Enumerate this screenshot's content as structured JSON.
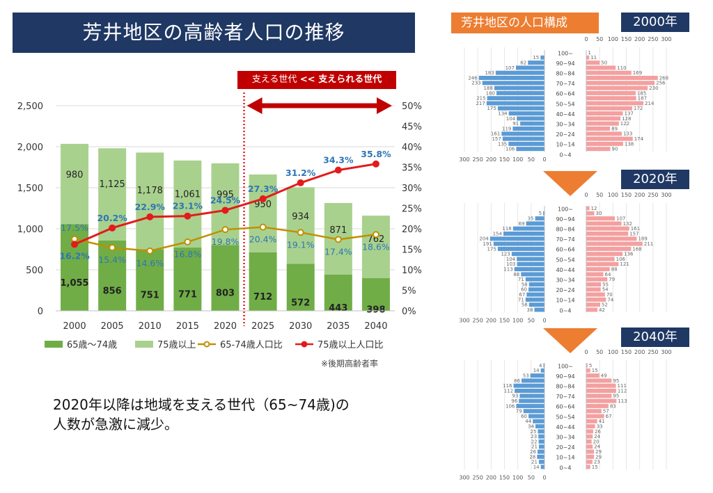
{
  "title": "芳井地区の高齢者人口の推移",
  "population_title": "芳井地区の人口構成",
  "support_label": {
    "left": "支える世代",
    "arrow": "<<",
    "right": "支えられる世代"
  },
  "note": "※後期高齢者率",
  "message_line1": "2020年以降は地域を支える世代（65~74歳)の",
  "message_line2": "人数が急激に減少。",
  "colors": {
    "dark_green": "#70ad47",
    "light_green": "#a9d18e",
    "gold": "#bf9000",
    "red": "#e31b1b",
    "blue": "#5b9bd5",
    "pink": "#f4a0a0",
    "navy": "#1f3864",
    "orange": "#ed7d31",
    "ratio_label_blue": "#2e75b6",
    "ratio_label_dark": "#1f4e79"
  },
  "chart_data": [
    {
      "type": "bar",
      "stacked": true,
      "categories": [
        "2000",
        "2005",
        "2010",
        "2015",
        "2020",
        "2025",
        "2030",
        "2035",
        "2040"
      ],
      "series": [
        {
          "name": "65歳～74歳",
          "values": [
            1055,
            856,
            751,
            771,
            803,
            712,
            572,
            443,
            398
          ]
        },
        {
          "name": "75歳以上",
          "values": [
            980,
            1125,
            1178,
            1061,
            995,
            950,
            934,
            871,
            762
          ]
        }
      ],
      "line_series": [
        {
          "name": "65-74歳人口比",
          "axis": "right",
          "values": [
            17.5,
            15.4,
            14.6,
            16.8,
            19.8,
            20.4,
            19.1,
            17.4,
            18.6
          ],
          "labels": [
            "17.5%",
            "15.4%",
            "14.6%",
            "16.8%",
            "19.8%",
            "20.4%",
            "19.1%",
            "17.4%",
            "18.6%"
          ]
        },
        {
          "name": "75歳以上人口比",
          "axis": "right",
          "values": [
            16.2,
            20.2,
            22.9,
            23.1,
            24.5,
            27.3,
            31.2,
            34.3,
            35.8
          ],
          "labels": [
            "16.2%",
            "20.2%",
            "22.9%",
            "23.1%",
            "24.5%",
            "27.3%",
            "31.2%",
            "34.3%",
            "35.8%"
          ]
        }
      ],
      "ylim": [
        0,
        2500
      ],
      "yticks": [
        "0",
        "500",
        "1,000",
        "1,500",
        "2,000",
        "2,500"
      ],
      "y2lim": [
        0,
        50
      ],
      "y2ticks": [
        "0%",
        "5%",
        "10%",
        "15%",
        "20%",
        "25%",
        "30%",
        "35%",
        "40%",
        "45%",
        "50%"
      ],
      "bar_labels": {
        "dark": [
          "1,055",
          "856",
          "751",
          "771",
          "803",
          "712",
          "572",
          "443",
          "398"
        ],
        "light": [
          "980",
          "1,125",
          "1,178",
          "1,061",
          "995",
          "950",
          "934",
          "871",
          "762"
        ]
      },
      "legend_position": "bottom",
      "projection_start": "2025"
    },
    {
      "type": "bar",
      "orientation": "horizontal-pyramid",
      "year": "2000年",
      "age_groups": [
        "100~",
        "90~94",
        "80~84",
        "70~74",
        "60~64",
        "50~54",
        "40~44",
        "30~34",
        "20~24",
        "10~14",
        "0~4"
      ],
      "male": [
        0,
        15,
        62,
        107,
        183,
        246,
        233,
        188,
        180,
        215,
        217,
        175,
        134,
        104,
        91,
        119,
        161,
        157,
        135,
        106
      ],
      "female": [
        1,
        11,
        50,
        110,
        169,
        268,
        256,
        230,
        185,
        187,
        214,
        172,
        137,
        128,
        122,
        89,
        133,
        174,
        138,
        90
      ],
      "xticks": [
        "300",
        "250",
        "200",
        "150",
        "100",
        "50",
        "0"
      ],
      "xlim": [
        0,
        300
      ]
    },
    {
      "type": "bar",
      "orientation": "horizontal-pyramid",
      "year": "2020年",
      "age_groups": [
        "100~",
        "90~94",
        "80~84",
        "70~74",
        "60~64",
        "50~54",
        "40~44",
        "30~34",
        "20~24",
        "10~14",
        "0~4"
      ],
      "male": [
        0,
        5,
        35,
        69,
        118,
        154,
        204,
        191,
        175,
        123,
        104,
        103,
        113,
        88,
        71,
        58,
        60,
        67,
        71,
        58,
        38
      ],
      "female": [
        12,
        30,
        107,
        132,
        161,
        157,
        189,
        211,
        168,
        136,
        106,
        121,
        88,
        64,
        79,
        55,
        54,
        70,
        74,
        52,
        42
      ],
      "xticks": [
        "300",
        "250",
        "200",
        "150",
        "100",
        "50",
        "0"
      ],
      "xlim": [
        0,
        300
      ]
    },
    {
      "type": "bar",
      "orientation": "horizontal-pyramid",
      "year": "2040年",
      "age_groups": [
        "100~",
        "90~94",
        "80~84",
        "70~74",
        "60~64",
        "50~54",
        "40~44",
        "30~34",
        "20~24",
        "10~14",
        "0~4"
      ],
      "male": [
        4,
        14,
        53,
        86,
        116,
        112,
        93,
        96,
        106,
        79,
        60,
        44,
        34,
        25,
        23,
        22,
        21,
        26,
        28,
        21,
        14
      ],
      "female": [
        5,
        15,
        49,
        95,
        111,
        112,
        95,
        113,
        83,
        57,
        67,
        41,
        33,
        26,
        24,
        20,
        24,
        29,
        29,
        23,
        15
      ],
      "xticks": [
        "300",
        "250",
        "200",
        "150",
        "100",
        "50",
        "0"
      ],
      "xlim": [
        0,
        300
      ]
    }
  ]
}
